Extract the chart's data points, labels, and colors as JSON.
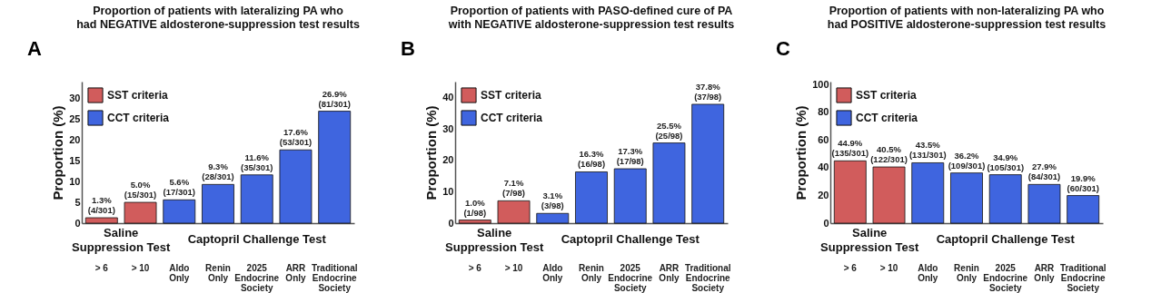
{
  "chart_data": [
    {
      "type": "bar",
      "title": "Proportion of patients with lateralizing PA who had NEGATIVE aldosterone-suppression test results",
      "ylabel": "Proportion (%)",
      "annotations": [
        "A",
        "Saline Suppression Test",
        "Captopril Challenge Test"
      ],
      "categories": [
        "> 6",
        "> 10",
        "Aldo Only",
        "Renin Only",
        "2025 Endocrine Society",
        "ARR Only",
        "Traditional Endocrine Society"
      ],
      "ylim": [
        0,
        34
      ],
      "yticks": [
        0,
        5,
        10,
        15,
        20,
        25,
        30
      ],
      "legend": "top left",
      "grid": false,
      "series": [
        {
          "name": "SST criteria",
          "color": "#d15c5c",
          "values": [
            1.3,
            5.0,
            null,
            null,
            null,
            null,
            null
          ],
          "value_labels": [
            "1.3%\n(4/301)",
            "5.0%\n(15/301)",
            null,
            null,
            null,
            null,
            null
          ]
        },
        {
          "name": "CCT criteria",
          "color": "#3f65df",
          "values": [
            null,
            null,
            5.6,
            9.3,
            11.6,
            17.6,
            26.9
          ],
          "value_labels": [
            null,
            null,
            "5.6%\n(17/301)",
            "9.3%\n(28/301)",
            "11.6%\n(35/301)",
            "17.6%\n(53/301)",
            "26.9%\n(81/301)"
          ]
        }
      ]
    },
    {
      "type": "bar",
      "title": "Proportion of patients with PASO-defined cure of PA with NEGATIVE aldosterone-suppression test results",
      "ylabel": "Proportion (%)",
      "annotations": [
        "B",
        "Saline Suppression Test",
        "Captopril Challenge Test"
      ],
      "categories": [
        "> 6",
        "> 10",
        "Aldo Only",
        "Renin Only",
        "2025 Endocrine Society",
        "ARR Only",
        "Traditional Endocrine Society"
      ],
      "ylim": [
        0,
        45
      ],
      "yticks": [
        0,
        10,
        20,
        30,
        40
      ],
      "legend": "top left",
      "grid": false,
      "series": [
        {
          "name": "SST criteria",
          "color": "#d15c5c",
          "values": [
            1.0,
            7.1,
            null,
            null,
            null,
            null,
            null
          ],
          "value_labels": [
            "1.0%\n(1/98)",
            "7.1%\n(7/98)",
            null,
            null,
            null,
            null,
            null
          ]
        },
        {
          "name": "CCT criteria",
          "color": "#3f65df",
          "values": [
            null,
            null,
            3.1,
            16.3,
            17.3,
            25.5,
            37.8
          ],
          "value_labels": [
            null,
            null,
            "3.1%\n(3/98)",
            "16.3%\n(16/98)",
            "17.3%\n(17/98)",
            "25.5%\n(25/98)",
            "37.8%\n(37/98)"
          ]
        }
      ]
    },
    {
      "type": "bar",
      "title": "Proportion of patients with non-lateralizing PA who had POSITIVE aldosterone-suppression test results",
      "ylabel": "Proportion (%)",
      "annotations": [
        "C",
        "Saline Suppression Test",
        "Captopril Challenge Test"
      ],
      "categories": [
        "> 6",
        "> 10",
        "Aldo Only",
        "Renin Only",
        "2025 Endocrine Society",
        "ARR Only",
        "Traditional Endocrine Society"
      ],
      "ylim": [
        0,
        102
      ],
      "yticks": [
        0,
        20,
        40,
        60,
        80,
        100
      ],
      "legend": "top left",
      "grid": false,
      "series": [
        {
          "name": "SST criteria",
          "color": "#d15c5c",
          "values": [
            44.9,
            40.5,
            null,
            null,
            null,
            null,
            null
          ],
          "value_labels": [
            "44.9%\n(135/301)",
            "40.5%\n(122/301)",
            null,
            null,
            null,
            null,
            null
          ]
        },
        {
          "name": "CCT criteria",
          "color": "#3f65df",
          "values": [
            null,
            null,
            43.5,
            36.2,
            34.9,
            27.9,
            19.9
          ],
          "value_labels": [
            null,
            null,
            "43.5%\n(131/301)",
            "36.2%\n(109/301)",
            "34.9%\n(105/301)",
            "27.9%\n(84/301)",
            "19.9%\n(60/301)"
          ]
        }
      ]
    }
  ]
}
